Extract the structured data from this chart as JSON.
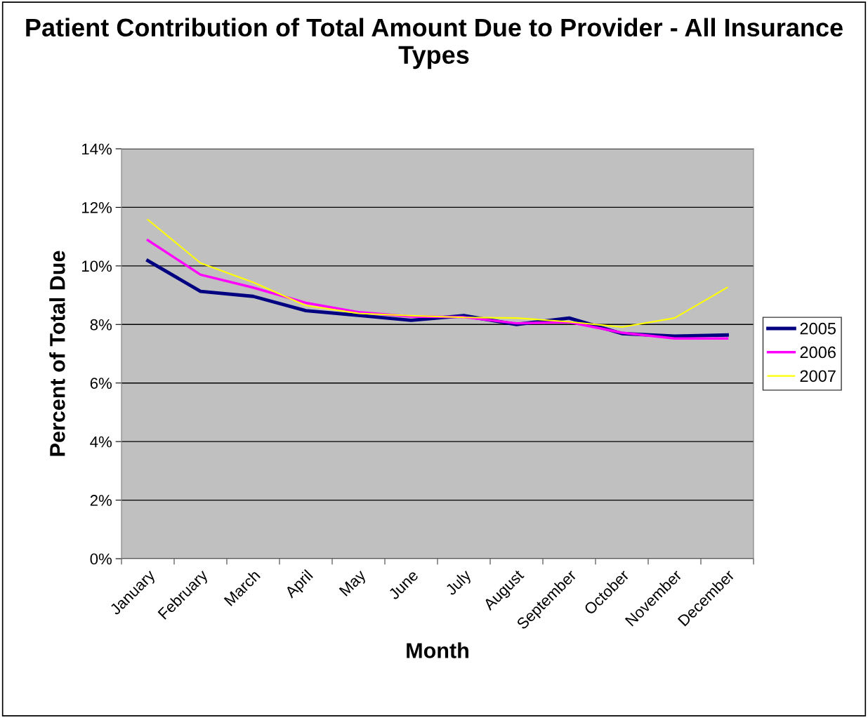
{
  "chart_data": {
    "type": "line",
    "title": "Patient Contribution of Total Amount Due to Provider - All Insurance Types",
    "xlabel": "Month",
    "ylabel": "Percent of Total Due",
    "categories": [
      "January",
      "February",
      "March",
      "April",
      "May",
      "June",
      "July",
      "August",
      "September",
      "October",
      "November",
      "December"
    ],
    "series": [
      {
        "name": "2005",
        "color": "#000080",
        "values": [
          10.18,
          9.13,
          8.96,
          8.47,
          8.31,
          8.14,
          8.3,
          8.0,
          8.22,
          7.69,
          7.6,
          7.64
        ]
      },
      {
        "name": "2006",
        "color": "#ff00ff",
        "values": [
          10.88,
          9.7,
          9.26,
          8.74,
          8.42,
          8.27,
          8.25,
          8.04,
          8.08,
          7.72,
          7.52,
          7.52
        ]
      },
      {
        "name": "2007",
        "color": "#ffff00",
        "values": [
          11.58,
          10.1,
          9.44,
          8.65,
          8.38,
          8.3,
          8.24,
          8.22,
          8.09,
          7.91,
          8.22,
          9.26
        ]
      }
    ],
    "ylim": [
      0,
      14
    ],
    "yticks": [
      {
        "value": 0,
        "label": "0%"
      },
      {
        "value": 2,
        "label": "2%"
      },
      {
        "value": 4,
        "label": "4%"
      },
      {
        "value": 6,
        "label": "6%"
      },
      {
        "value": 8,
        "label": "8%"
      },
      {
        "value": 10,
        "label": "10%"
      },
      {
        "value": 12,
        "label": "12%"
      },
      {
        "value": 14,
        "label": "14%"
      }
    ],
    "grid": "y",
    "legend": "right",
    "marker": "none",
    "line_style": "solid"
  }
}
